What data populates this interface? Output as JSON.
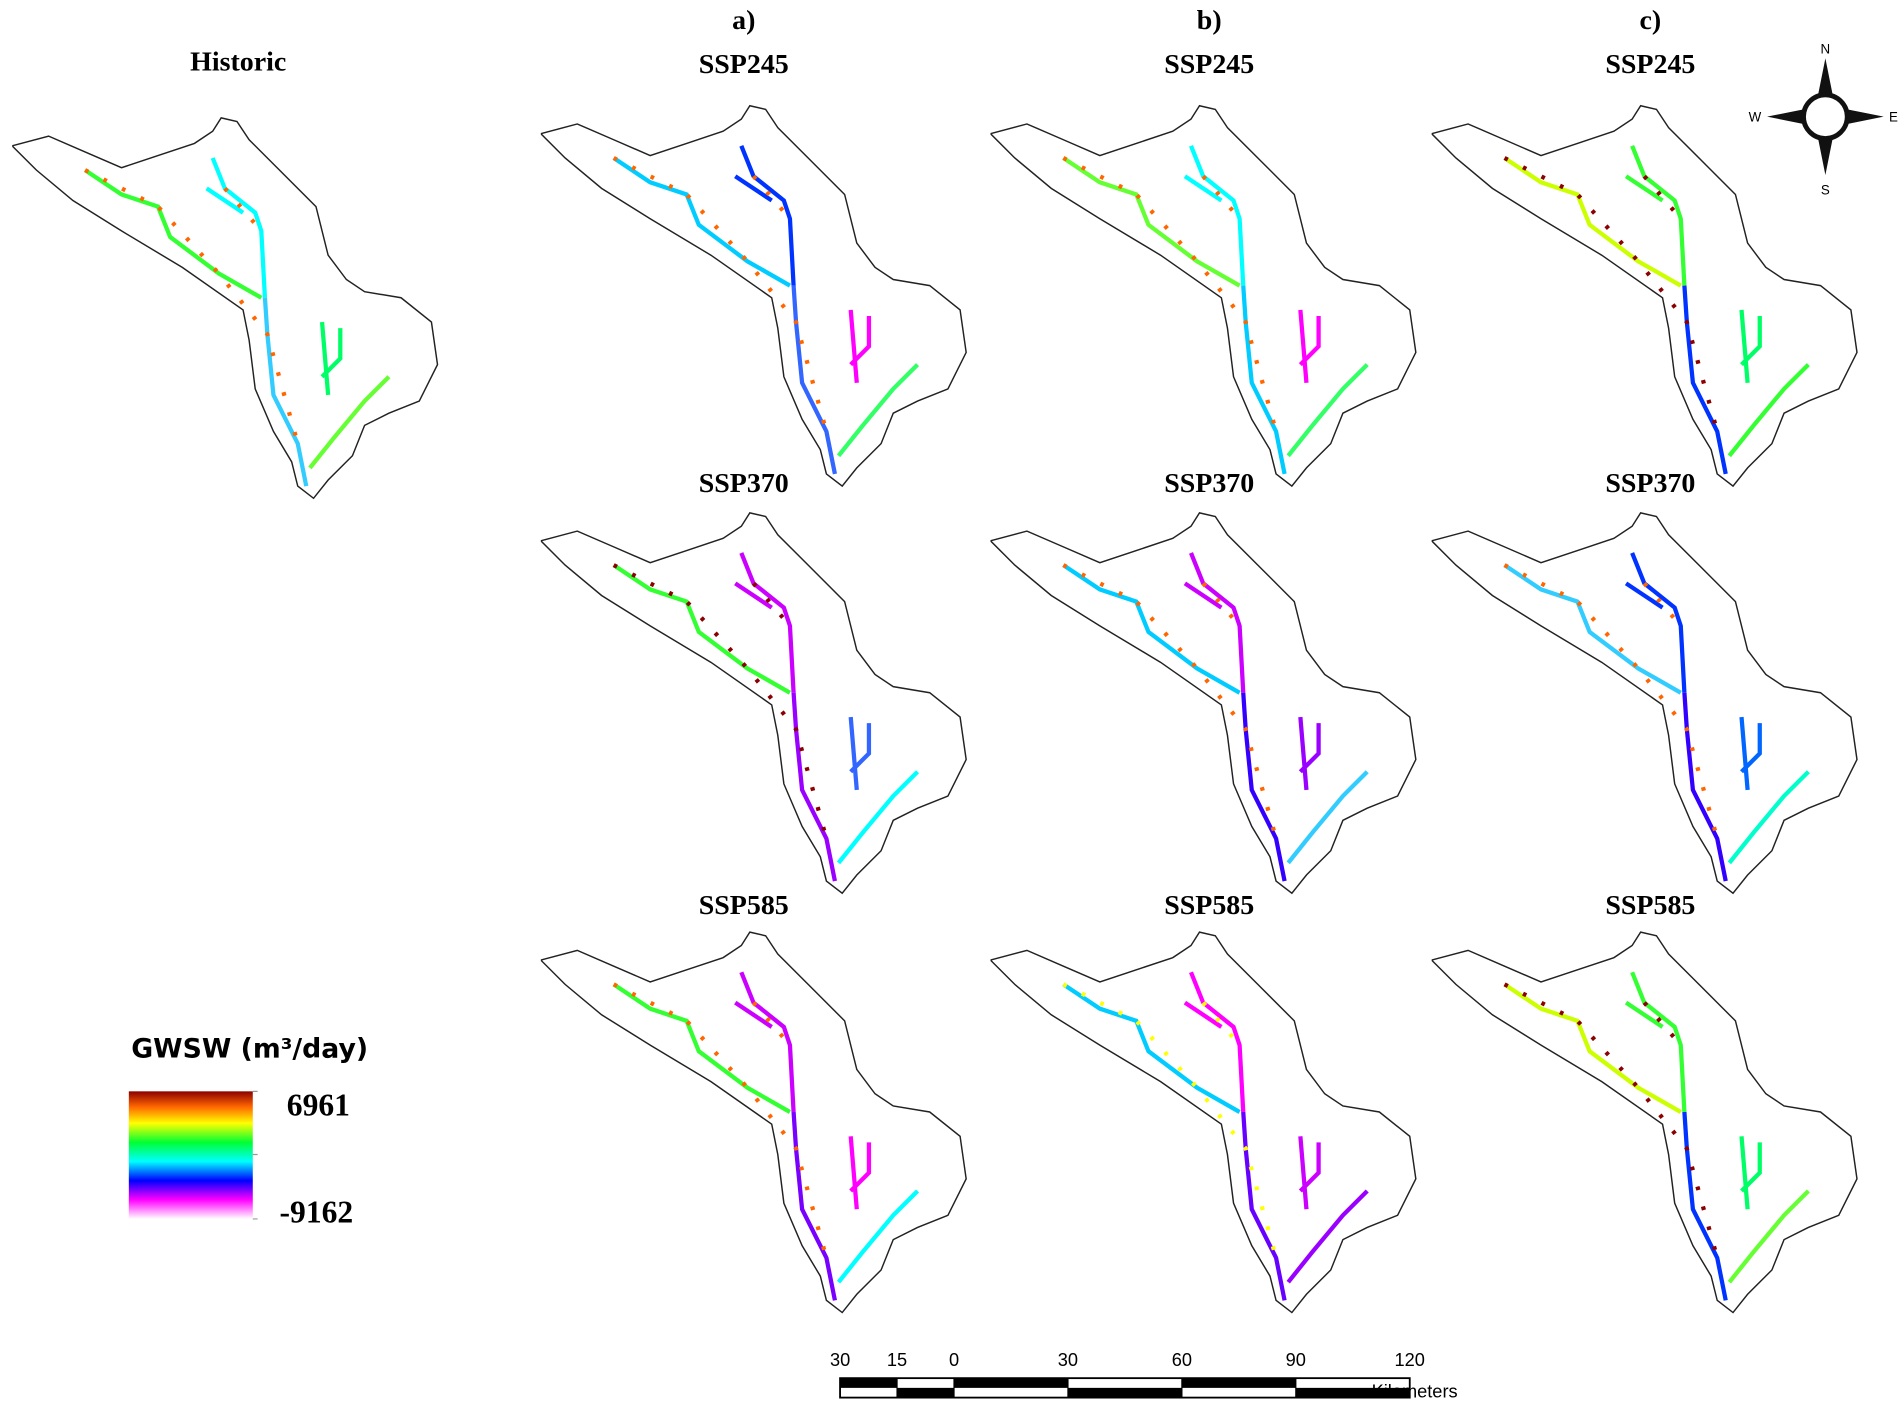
{
  "historic": {
    "title": "Historic"
  },
  "columns": [
    {
      "label": "a)",
      "panels": [
        "SSP245",
        "SSP370",
        "SSP585"
      ]
    },
    {
      "label": "b)",
      "panels": [
        "SSP245",
        "SSP370",
        "SSP585"
      ]
    },
    {
      "label": "c)",
      "panels": [
        "SSP245",
        "SSP370",
        "SSP585"
      ]
    }
  ],
  "legend": {
    "title": "GWSW (m³/day)",
    "max": 6961,
    "min": -9162
  },
  "scale_bar": {
    "ticks": [
      {
        "value": -30,
        "label": "30"
      },
      {
        "value": -15,
        "label": "15"
      },
      0,
      30,
      60,
      90,
      120
    ],
    "unit": "Kilometers"
  },
  "compass": {
    "n": "N",
    "e": "E",
    "s": "S",
    "w": "W"
  }
}
